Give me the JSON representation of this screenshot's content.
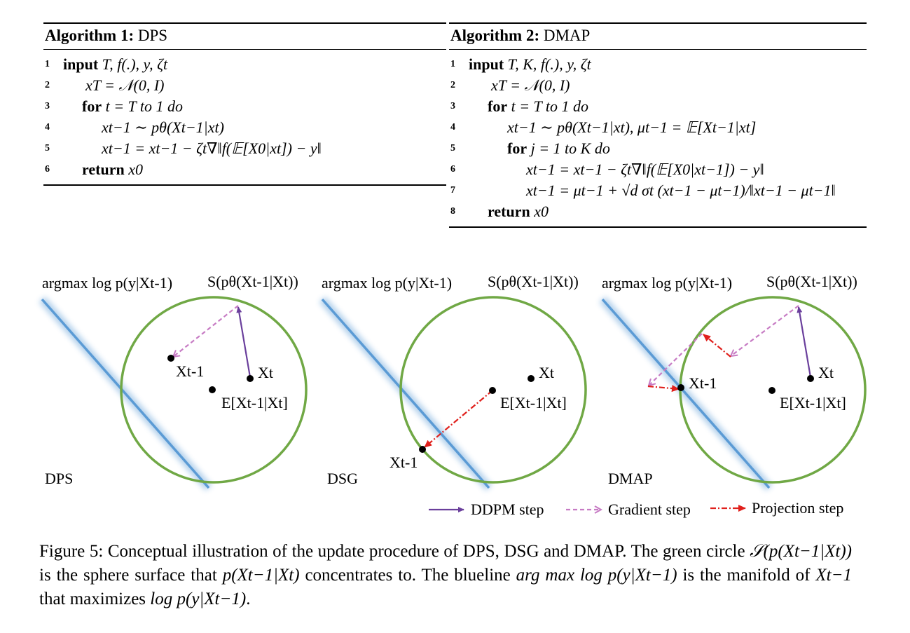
{
  "algorithm1": {
    "title_bold": "Algorithm 1:",
    "title_name": "DPS",
    "lines": [
      {
        "num": "1",
        "kw": "input",
        "text": " T, f(.), y, ζt"
      },
      {
        "num": "2",
        "kw": "",
        "text": "xT = 𝒩(0, I)"
      },
      {
        "num": "3",
        "kw": "for",
        "text": " t = T to 1 do"
      },
      {
        "num": "4",
        "kw": "",
        "text": "xt−1 ∼ pθ(Xt−1|xt)"
      },
      {
        "num": "5",
        "kw": "",
        "text": "xt−1 = xt−1 − ζt∇‖f(𝔼[X0|xt]) − y‖"
      },
      {
        "num": "6",
        "kw": "return",
        "text": " x0"
      }
    ]
  },
  "algorithm2": {
    "title_bold": "Algorithm 2:",
    "title_name": "DMAP",
    "lines": [
      {
        "num": "1",
        "kw": "input",
        "text": " T, K, f(.), y, ζt"
      },
      {
        "num": "2",
        "kw": "",
        "text": "xT = 𝒩(0, I)"
      },
      {
        "num": "3",
        "kw": "for",
        "text": " t = T to 1 do"
      },
      {
        "num": "4",
        "kw": "",
        "text": "xt−1 ∼ pθ(Xt−1|xt), μt−1 = 𝔼[Xt−1|xt]"
      },
      {
        "num": "5",
        "kw": "for",
        "text": " j = 1 to K do"
      },
      {
        "num": "6",
        "kw": "",
        "text": "xt−1 = xt−1 − ζt∇‖f(𝔼[X0|xt−1]) − y‖"
      },
      {
        "num": "7",
        "kw": "",
        "text": "xt−1 = μt−1 + √d σt (xt−1 − μt−1)/‖xt−1 − μt−1‖"
      },
      {
        "num": "8",
        "kw": "return",
        "text": " x0"
      }
    ]
  },
  "figure": {
    "panels": [
      {
        "argmax_label": "argmax log p(y|Xt-1)",
        "sphere_label": "S(pθ(Xt-1|Xt))",
        "method": "DPS",
        "points": {
          "xt": "Xt",
          "xt1": "Xt-1",
          "expect": "E[Xt-1|Xt]"
        }
      },
      {
        "argmax_label": "argmax log p(y|Xt-1)",
        "sphere_label": "S(pθ(Xt-1|Xt))",
        "method": "DSG",
        "points": {
          "xt": "Xt",
          "xt1": "Xt-1",
          "expect": "E[Xt-1|Xt]"
        }
      },
      {
        "argmax_label": "argmax log p(y|Xt-1)",
        "sphere_label": "S(pθ(Xt-1|Xt))",
        "method": "DMAP",
        "points": {
          "xt": "Xt",
          "xt1": "Xt-1",
          "expect": "E[Xt-1|Xt]"
        }
      }
    ],
    "legend": {
      "ddpm": "DDPM step",
      "gradient": "Gradient step",
      "projection": "Projection step"
    },
    "colors": {
      "circle": "#70a845",
      "line": "#5b9bd5",
      "ddpm": "#6a3f9c",
      "gradient": "#c77bc4",
      "projection": "#e0201c"
    }
  },
  "caption": {
    "prefix": "Figure 5: Conceptual illustration of the update procedure of DPS, DSG and DMAP. The green circle ",
    "sphere_expr": "𝒮(p(Xt−1|Xt))",
    "mid1": " is the sphere surface that ",
    "concentrate_expr": "p(Xt−1|Xt)",
    "mid2": " concentrates to.  The blueline ",
    "argmax_expr": "arg max log p(y|Xt−1)",
    "mid3": " is the manifold of ",
    "manifold_expr": "Xt−1",
    "mid4": " that maximizes ",
    "maximize_expr": "log p(y|Xt−1)",
    "suffix": "."
  }
}
